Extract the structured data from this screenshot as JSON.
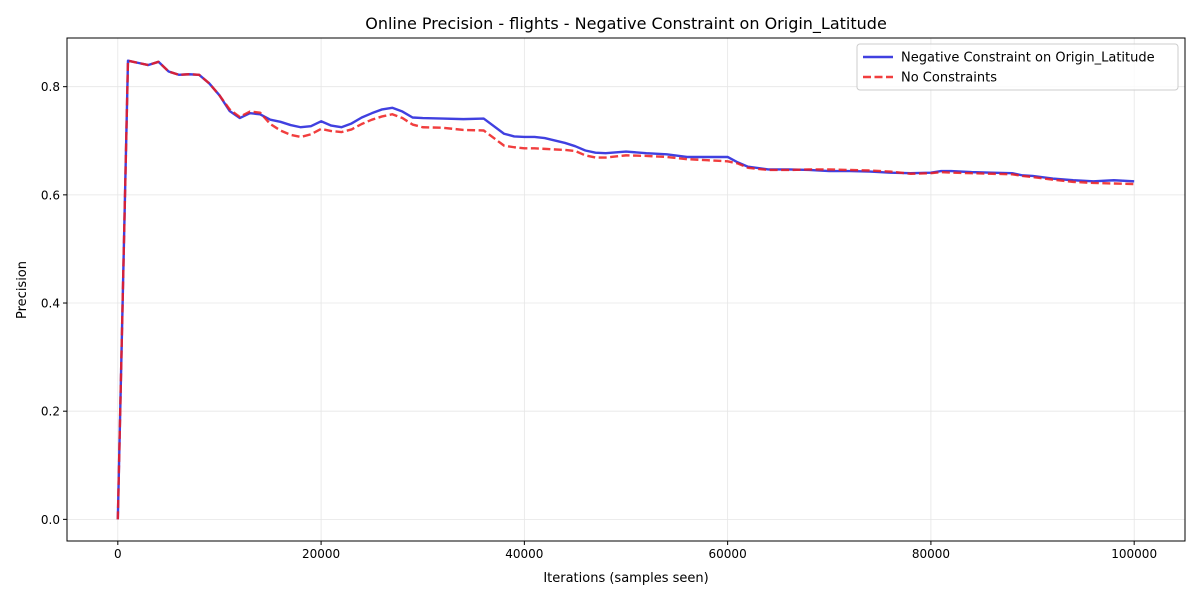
{
  "chart_data": {
    "type": "line",
    "title": "Online Precision - flights - Negative Constraint on Origin_Latitude",
    "xlabel": "Iterations (samples seen)",
    "ylabel": "Precision",
    "xlim": [
      -5000,
      105000
    ],
    "ylim": [
      -0.04,
      0.89
    ],
    "xticks": [
      0,
      20000,
      40000,
      60000,
      80000,
      100000
    ],
    "xtick_labels": [
      "0",
      "20000",
      "40000",
      "60000",
      "80000",
      "100000"
    ],
    "yticks": [
      0.0,
      0.2,
      0.4,
      0.6,
      0.8
    ],
    "ytick_labels": [
      "0.0",
      "0.2",
      "0.4",
      "0.6",
      "0.8"
    ],
    "grid": true,
    "legend_position": "top-right",
    "x": [
      0,
      1000,
      2000,
      3000,
      4000,
      5000,
      6000,
      7000,
      8000,
      9000,
      10000,
      11000,
      12000,
      13000,
      14000,
      15000,
      16000,
      17000,
      18000,
      19000,
      20000,
      21000,
      22000,
      23000,
      24000,
      25000,
      26000,
      27000,
      28000,
      29000,
      30000,
      32000,
      34000,
      36000,
      38000,
      39000,
      40000,
      41000,
      42000,
      44000,
      45000,
      46000,
      47000,
      48000,
      50000,
      52000,
      54000,
      56000,
      58000,
      60000,
      61000,
      62000,
      64000,
      66000,
      68000,
      70000,
      72000,
      74000,
      76000,
      78000,
      80000,
      81000,
      82000,
      84000,
      86000,
      88000,
      89000,
      90000,
      92000,
      94000,
      96000,
      98000,
      100000
    ],
    "series": [
      {
        "name": "Negative Constraint on Origin_Latitude",
        "color": "#1f1fdb",
        "style": "solid",
        "values": [
          0.0,
          0.848,
          0.844,
          0.84,
          0.846,
          0.828,
          0.822,
          0.823,
          0.822,
          0.806,
          0.784,
          0.755,
          0.742,
          0.751,
          0.749,
          0.739,
          0.735,
          0.729,
          0.725,
          0.727,
          0.736,
          0.728,
          0.725,
          0.732,
          0.743,
          0.751,
          0.758,
          0.761,
          0.754,
          0.743,
          0.742,
          0.741,
          0.74,
          0.741,
          0.713,
          0.708,
          0.707,
          0.707,
          0.705,
          0.696,
          0.69,
          0.682,
          0.678,
          0.677,
          0.68,
          0.677,
          0.675,
          0.67,
          0.67,
          0.67,
          0.66,
          0.652,
          0.647,
          0.647,
          0.646,
          0.644,
          0.644,
          0.643,
          0.641,
          0.64,
          0.641,
          0.644,
          0.644,
          0.642,
          0.641,
          0.64,
          0.636,
          0.635,
          0.63,
          0.627,
          0.625,
          0.627,
          0.625
        ]
      },
      {
        "name": "No Constraints",
        "color": "#ee1c1c",
        "style": "dashed",
        "values": [
          0.0,
          0.848,
          0.844,
          0.84,
          0.846,
          0.828,
          0.822,
          0.823,
          0.822,
          0.806,
          0.784,
          0.758,
          0.744,
          0.754,
          0.752,
          0.731,
          0.719,
          0.711,
          0.707,
          0.712,
          0.722,
          0.718,
          0.716,
          0.721,
          0.731,
          0.739,
          0.745,
          0.749,
          0.742,
          0.73,
          0.725,
          0.724,
          0.72,
          0.719,
          0.691,
          0.688,
          0.686,
          0.686,
          0.685,
          0.683,
          0.681,
          0.673,
          0.669,
          0.669,
          0.673,
          0.672,
          0.67,
          0.666,
          0.664,
          0.662,
          0.658,
          0.65,
          0.646,
          0.646,
          0.647,
          0.647,
          0.646,
          0.645,
          0.643,
          0.639,
          0.64,
          0.642,
          0.641,
          0.64,
          0.639,
          0.638,
          0.635,
          0.633,
          0.628,
          0.624,
          0.622,
          0.621,
          0.62
        ]
      }
    ]
  }
}
